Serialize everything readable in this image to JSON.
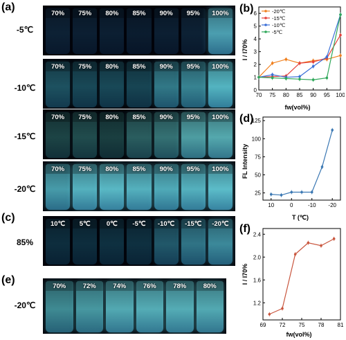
{
  "panel_labels": {
    "a": "(a)",
    "b": "(b)",
    "c": "(c)",
    "d": "(d)",
    "e": "(e)",
    "f": "(f)"
  },
  "panel_a": {
    "rows": [
      {
        "label": "-5℃",
        "vials": [
          "70%",
          "75%",
          "80%",
          "85%",
          "90%",
          "95%",
          "100%"
        ],
        "glow": [
          0.12,
          0.1,
          0.1,
          0.08,
          0.1,
          0.12,
          0.75
        ],
        "tint": [
          20,
          70,
          120
        ]
      },
      {
        "label": "-10℃",
        "vials": [
          "70%",
          "75%",
          "80%",
          "85%",
          "90%",
          "95%",
          "100%"
        ],
        "glow": [
          0.35,
          0.3,
          0.3,
          0.28,
          0.55,
          0.6,
          0.8
        ],
        "tint": [
          20,
          110,
          140
        ]
      },
      {
        "label": "-15℃",
        "vials": [
          "70%",
          "75%",
          "80%",
          "85%",
          "90%",
          "95%",
          "100%"
        ],
        "glow": [
          0.25,
          0.3,
          0.22,
          0.4,
          0.5,
          0.7,
          0.75
        ],
        "tint": [
          40,
          120,
          110
        ]
      },
      {
        "label": "-20℃",
        "vials": [
          "70%",
          "75%",
          "80%",
          "85%",
          "90%",
          "95%",
          "100%"
        ],
        "glow": [
          0.65,
          0.75,
          0.78,
          0.75,
          0.72,
          0.75,
          0.8
        ],
        "tint": [
          40,
          160,
          190
        ]
      }
    ]
  },
  "panel_c": {
    "label": "85%",
    "vials": [
      "10℃",
      "5℃",
      "0℃",
      "-5℃",
      "-10℃",
      "-15℃",
      "-20℃"
    ],
    "glow": [
      0.08,
      0.08,
      0.1,
      0.1,
      0.35,
      0.5,
      0.6
    ],
    "tint": [
      30,
      130,
      170
    ]
  },
  "panel_e": {
    "label": "-20℃",
    "vials": [
      "70%",
      "72%",
      "74%",
      "76%",
      "78%",
      "80%"
    ],
    "glow": [
      0.55,
      0.62,
      0.7,
      0.72,
      0.72,
      0.7
    ],
    "tint": [
      50,
      170,
      180
    ]
  },
  "colors": {
    "orange": "#f07f1d",
    "red": "#e5403a",
    "blue": "#3a6fd8",
    "green": "#2fa85a",
    "steel": "#3b78b3",
    "brick": "#c8543c"
  },
  "chart_data": [
    {
      "type": "line",
      "xlabel": "fw(vol%)",
      "ylabel": "I / I70%",
      "xlim": [
        70,
        100
      ],
      "ylim": [
        0,
        6.5
      ],
      "x": [
        70,
        75,
        80,
        85,
        90,
        95,
        100
      ],
      "xticks": [
        70,
        75,
        80,
        85,
        90,
        95,
        100
      ],
      "yticks": [
        0,
        1,
        2,
        3,
        4,
        5,
        6
      ],
      "legend_position": "top-left",
      "series": [
        {
          "name": "-20℃",
          "color": "#f07f1d",
          "values": [
            1,
            2.1,
            2.4,
            2.1,
            2.3,
            2.4,
            2.7
          ]
        },
        {
          "name": "-15℃",
          "color": "#e5403a",
          "values": [
            1,
            1.05,
            1.1,
            2.1,
            2.2,
            2.5,
            4.3
          ]
        },
        {
          "name": "-10℃",
          "color": "#3a6fd8",
          "values": [
            1,
            1.2,
            1.0,
            1.05,
            1.85,
            2.6,
            5.9
          ]
        },
        {
          "name": "-5℃",
          "color": "#2fa85a",
          "values": [
            1,
            0.95,
            0.9,
            0.85,
            0.8,
            0.95,
            5.9
          ]
        }
      ]
    },
    {
      "type": "line",
      "xlabel": "T (℃)",
      "ylabel": "FL Intensity",
      "xlim": [
        14,
        -24
      ],
      "ylim": [
        15,
        130
      ],
      "x": [
        10,
        5,
        0,
        -5,
        -10,
        -15,
        -20
      ],
      "xticks": [
        10,
        0,
        -10,
        -20
      ],
      "yticks": [
        25,
        50,
        75,
        100,
        125
      ],
      "series": [
        {
          "color": "#3b78b3",
          "values": [
            23,
            22,
            26,
            26,
            26,
            61,
            112
          ]
        }
      ]
    },
    {
      "type": "line",
      "xlabel": "fw(vol%)",
      "ylabel": "I / I70%",
      "xlim": [
        69,
        81
      ],
      "ylim": [
        0.9,
        2.5
      ],
      "x": [
        70,
        72,
        74,
        76,
        78,
        80
      ],
      "xticks": [
        69,
        72,
        75,
        78,
        81
      ],
      "yticks": [
        1.2,
        1.6,
        2.0,
        2.4
      ],
      "series": [
        {
          "color": "#c8543c",
          "values": [
            1.0,
            1.1,
            2.05,
            2.25,
            2.2,
            2.32
          ]
        }
      ]
    }
  ]
}
